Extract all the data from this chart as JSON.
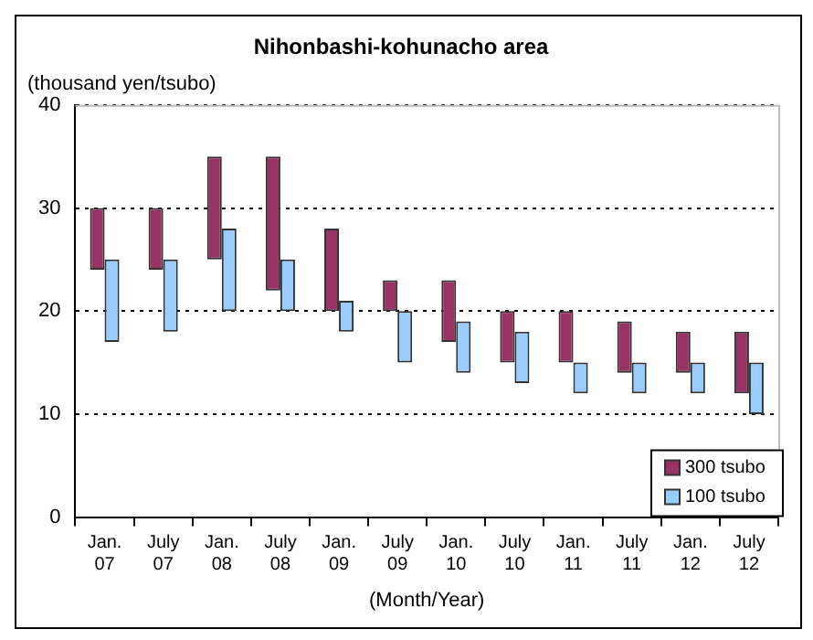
{
  "chart_data": {
    "type": "bar",
    "title": "Nihonbashi-kohunacho area",
    "ylabel": "(thousand yen/tsubo)",
    "xlabel": "(Month/Year)",
    "categories": [
      "Jan. 07",
      "July 07",
      "Jan. 08",
      "July 08",
      "Jan. 09",
      "July 09",
      "Jan. 10",
      "July 10",
      "Jan. 11",
      "July 11",
      "Jan. 12",
      "July 12"
    ],
    "series": [
      {
        "name": "300 tsubo",
        "color": "#993366",
        "base": [
          24,
          24,
          25,
          22,
          20,
          20,
          17,
          15,
          15,
          14,
          14,
          12
        ],
        "values": [
          6,
          6,
          10,
          13,
          8,
          3,
          6,
          5,
          5,
          5,
          4,
          6
        ]
      },
      {
        "name": "100 tsubo",
        "color": "#99ccff",
        "base": [
          17,
          18,
          20,
          20,
          18,
          15,
          14,
          13,
          12,
          12,
          12,
          10
        ],
        "values": [
          8,
          7,
          8,
          5,
          3,
          5,
          5,
          5,
          3,
          3,
          3,
          5
        ]
      }
    ],
    "ylim": [
      0,
      40
    ],
    "yticks": [
      0,
      10,
      20,
      30,
      40
    ],
    "grid": "y",
    "legend": "bottom right"
  }
}
